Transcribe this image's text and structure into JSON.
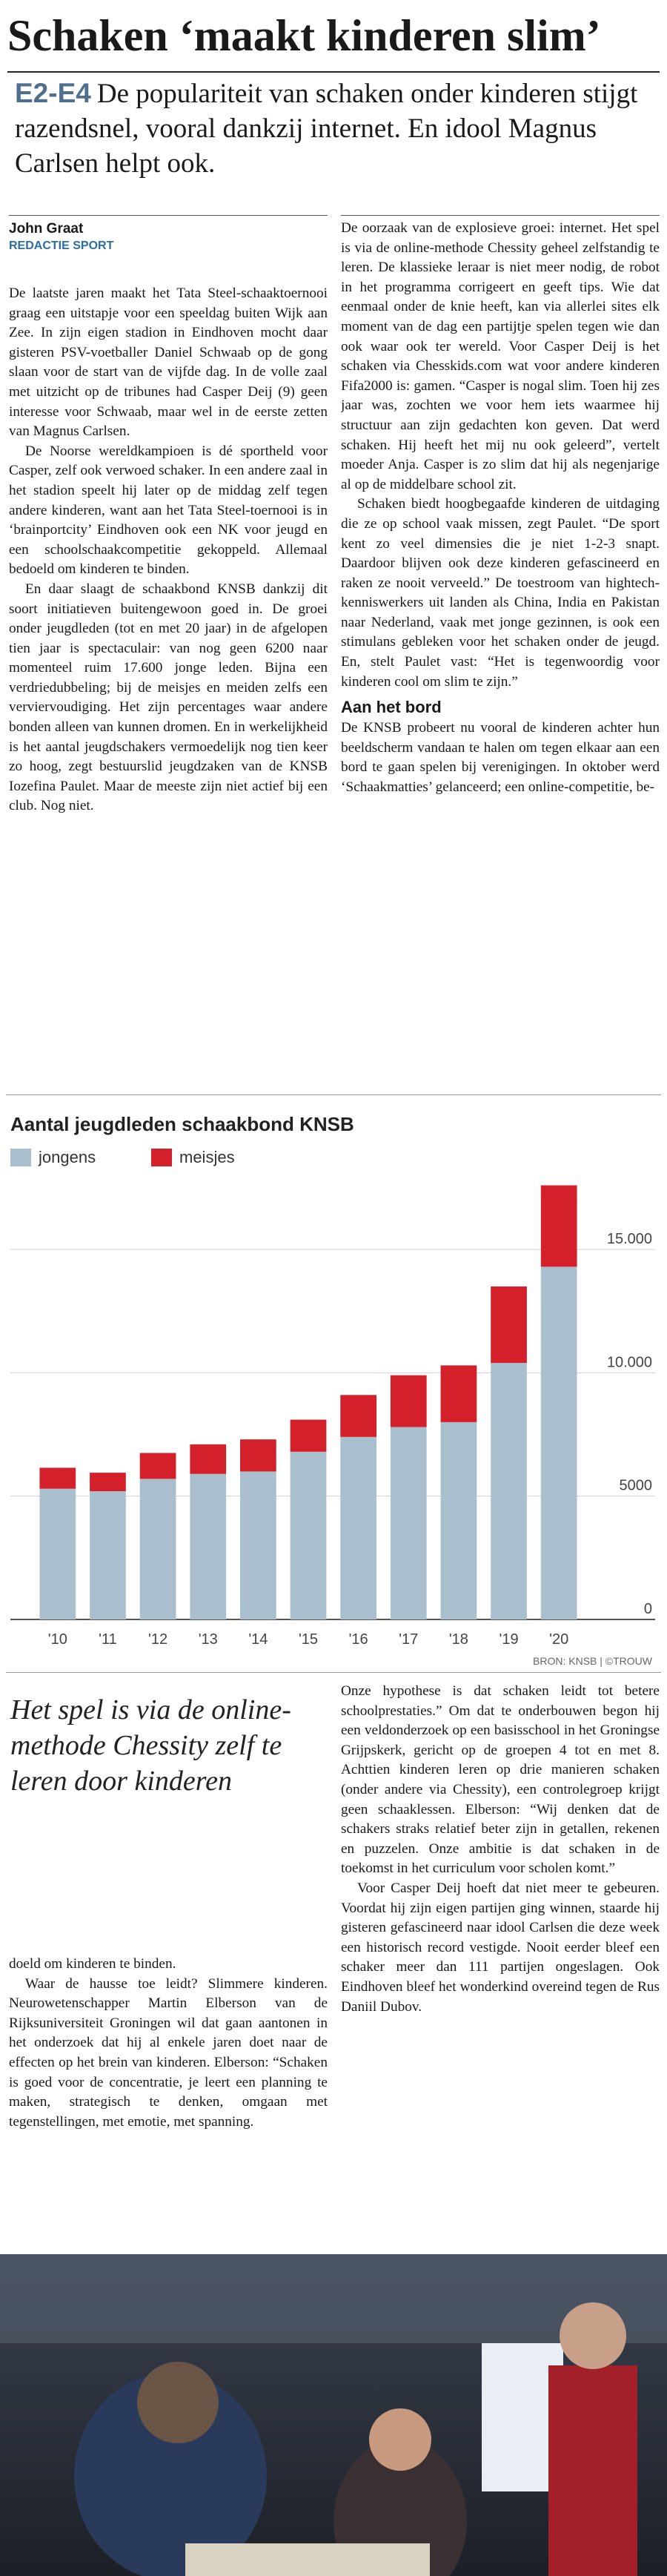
{
  "header": {
    "title": "Schaken ‘maakt kinderen slim’",
    "kicker": "E2-E4",
    "lead": "De populariteit van schaken onder kinderen stijgt razendsnel, vooral dankzij internet. En idool Magnus Carlsen helpt ook."
  },
  "byline": {
    "author": "John Graat",
    "department": "REDACTIE SPORT"
  },
  "body_left": [
    "De laatste jaren maakt het Tata Steel-schaaktoernooi graag een uitstapje voor een speeldag buiten Wijk aan Zee. In zijn eigen stadion in Eindhoven mocht daar gisteren PSV-voetballer Daniel Schwaab op de gong slaan voor de start van de vijfde dag. In de volle zaal met uitzicht op de tribunes had Casper Deij (9) geen interesse voor Schwaab, maar wel in de eerste zetten van Magnus Carlsen.",
    "De Noorse wereldkampioen is dé sportheld voor Casper, zelf ook verwoed schaker. In een andere zaal in het stadion speelt hij later op de middag zelf tegen andere kinderen, want aan het Tata Steel-toernooi is in ‘brainportcity’ Eindhoven ook een NK voor jeugd en een schoolschaakcompetitie gekoppeld. Allemaal bedoeld om kinderen te binden.",
    "En daar slaagt de schaakbond KNSB dankzij dit soort initiatieven buitengewoon goed in. De groei onder jeugdleden (tot en met 20 jaar) in de afgelopen tien jaar is spectaculair: van nog geen 6200 naar momenteel ruim 17.600 jonge leden. Bijna een verdriedubbeling; bij de meisjes en meiden zelfs een verviervoudiging. Het zijn percentages waar andere bonden alleen van kunnen dromen. En in werkelijkheid is het aantal jeugdschakers vermoedelijk nog tien keer zo hoog, zegt bestuurslid jeugdzaken van de KNSB Iozefina Paulet. Maar de meeste zijn niet actief bij een club. Nog niet."
  ],
  "body_right": [
    "De oorzaak van de explosieve groei: internet. Het spel is via de online-methode Chessity geheel zelfstandig te leren. De klassieke leraar is niet meer nodig, de robot in het programma corrigeert en geeft tips. Wie dat eenmaal onder de knie heeft, kan via allerlei sites elk moment van de dag een partijtje spelen tegen wie dan ook waar ook ter wereld. Voor Casper Deij is het schaken via Chesskids.com wat voor andere kinderen Fifa2000 is: gamen. “Casper is nogal slim. Toen hij zes jaar was, zochten we voor hem iets waarmee hij structuur aan zijn gedachten kon geven. Dat werd schaken. Hij heeft het mij nu ook geleerd”, vertelt moeder Anja. Casper is zo slim dat hij als negenjarige al op de middelbare school zit.",
    "Schaken biedt hoogbegaafde kinderen de uitdaging die ze op school vaak missen, zegt Paulet. “De sport kent zo veel dimensies die je niet 1-2-3 snapt. Daardoor blijven ook deze kinderen gefascineerd en raken ze nooit verveeld.” De toestroom van hightech-kenniswerkers uit landen als China, India en Pakistan naar Nederland, vaak met jonge gezinnen, is ook een stimulans gebleken voor het schaken onder de jeugd. En, stelt Paulet vast: “Het is tegenwoordig voor kinderen cool om slim te zijn.”"
  ],
  "subheading": "Aan het bord",
  "body_right_after": [
    "De KNSB probeert nu vooral de kinderen achter hun beeldscherm vandaan te halen om tegen elkaar aan een bord te gaan spelen bij verenigingen. In oktober werd ‘Schaakmatties’ gelanceerd; een online-competitie, be-"
  ],
  "chart_data": {
    "type": "bar",
    "stacked": true,
    "title": "Aantal jeugdleden schaakbond KNSB",
    "source": "BRON: KNSB | ©TROUW",
    "categories": [
      "'10",
      "'11",
      "'12",
      "'13",
      "'14",
      "'15",
      "'16",
      "'17",
      "'18",
      "'19",
      "'20"
    ],
    "series": [
      {
        "name": "jongens",
        "color": "#a9bfcd",
        "values": [
          5300,
          5200,
          5700,
          5900,
          6000,
          6800,
          7400,
          7800,
          8000,
          10400,
          14300
        ]
      },
      {
        "name": "meisjes",
        "color": "#d4202a",
        "values": [
          850,
          750,
          1050,
          1200,
          1300,
          1300,
          1700,
          2100,
          2300,
          3100,
          3300
        ]
      }
    ],
    "ylim": [
      0,
      19000
    ],
    "yticks": [
      0,
      5000,
      {
        "value": 10000,
        "label": "10.000"
      },
      {
        "value": 15000,
        "label": "15.000"
      }
    ],
    "grid": true,
    "legend": "top-left"
  },
  "pull_quote": "Het spel is via de online-methode Chessity zelf te leren door kinderen",
  "body_bottom_left": [
    "doeld om kinderen te binden.",
    "Waar de hausse toe leidt? Slimmere kinderen. Neurowetenschapper Martin Elberson van de Rijksuniversiteit Groningen wil dat gaan aantonen in het onderzoek dat hij al enkele jaren doet naar de effecten op het brein van kinderen. Elberson: “Schaken is goed voor de concentratie, je leert een planning te maken, strategisch te denken, omgaan met tegenstellingen, met emotie, met spanning."
  ],
  "body_bottom_right": [
    "Onze hypothese is dat schaken leidt tot betere schoolprestaties.” Om dat te onderbouwen begon hij een veldonderzoek op een basisschool in het Groningse Grijpskerk, gericht op de groepen 4 tot en met 8. Achttien kinderen leren op drie manieren schaken (onder andere via Chessity), een controlegroep krijgt geen schaaklessen. Elberson: “Wij denken dat de schakers straks relatief beter zijn in getallen, rekenen en puzzelen. Onze ambitie is dat schaken in de toekomst in het curriculum voor scholen komt.”",
    "Voor Casper Deij hoeft dat niet meer te gebeuren. Voordat hij zijn eigen partijen ging winnen, staarde hij gisteren gefascineerd naar idool Carlsen die deze week een historisch record vestigde. Nooit eerder bleef een schaker meer dan 111 partijen ongeslagen. Ook Eindhoven bleef het wonderkind overeind tegen de Rus Daniil Dubov."
  ]
}
